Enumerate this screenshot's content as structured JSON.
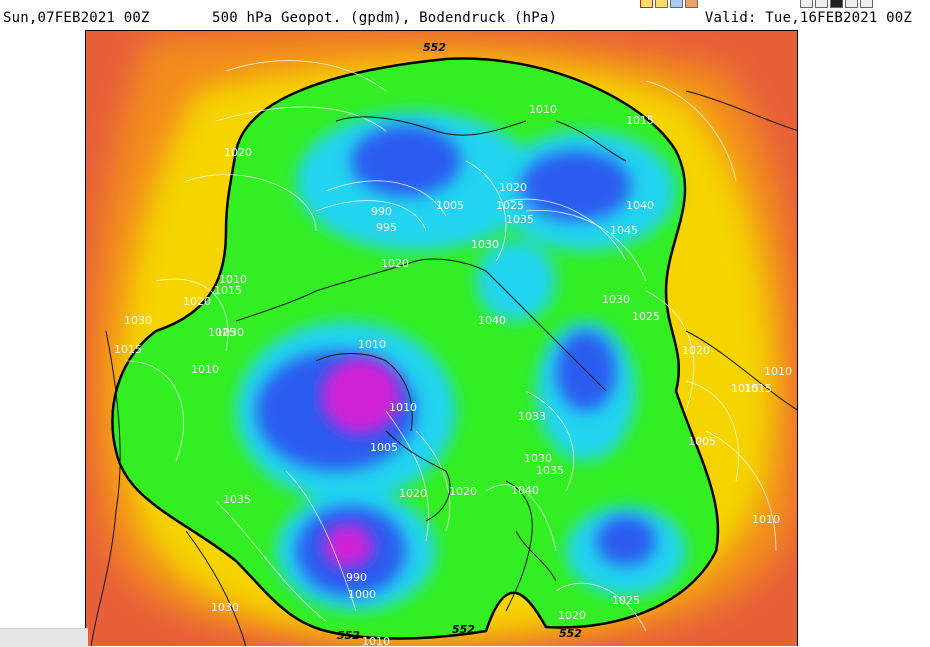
{
  "header": {
    "run": "Sun,07FEB2021 00Z",
    "title": "500 hPa Geopot. (gpdm), Bodendruck (hPa)",
    "valid": "Valid: Tue,16FEB2021 00Z"
  },
  "buttons_a": [
    "",
    "",
    "",
    ""
  ],
  "buttons_b": [
    "",
    "",
    "",
    "",
    ""
  ],
  "map": {
    "isobar_labels": [
      "1010",
      "1015",
      "1020",
      "990",
      "995",
      "1005",
      "1020",
      "1025",
      "1035",
      "1040",
      "1045",
      "1030",
      "1020",
      "1010",
      "1015",
      "1020",
      "1030",
      "1040",
      "1030",
      "1025",
      "1025",
      "1020",
      "1010",
      "1015",
      "1010",
      "1010",
      "1015",
      "1005",
      "1030",
      "1010",
      "1015",
      "1005",
      "1020",
      "1033",
      "1030",
      "1035",
      "1040",
      "1020",
      "1035",
      "990",
      "1000",
      "1030",
      "1025",
      "1020",
      "1010",
      "1010"
    ],
    "height_labels": [
      "552",
      "552",
      "552",
      "552"
    ]
  },
  "colors": {
    "outer": "#e8603a",
    "orange": "#f28b1c",
    "yellow": "#f5d400",
    "green": "#33ee22",
    "cyan": "#22d4f0",
    "blue": "#2a5cf0",
    "magenta": "#d020d8"
  }
}
